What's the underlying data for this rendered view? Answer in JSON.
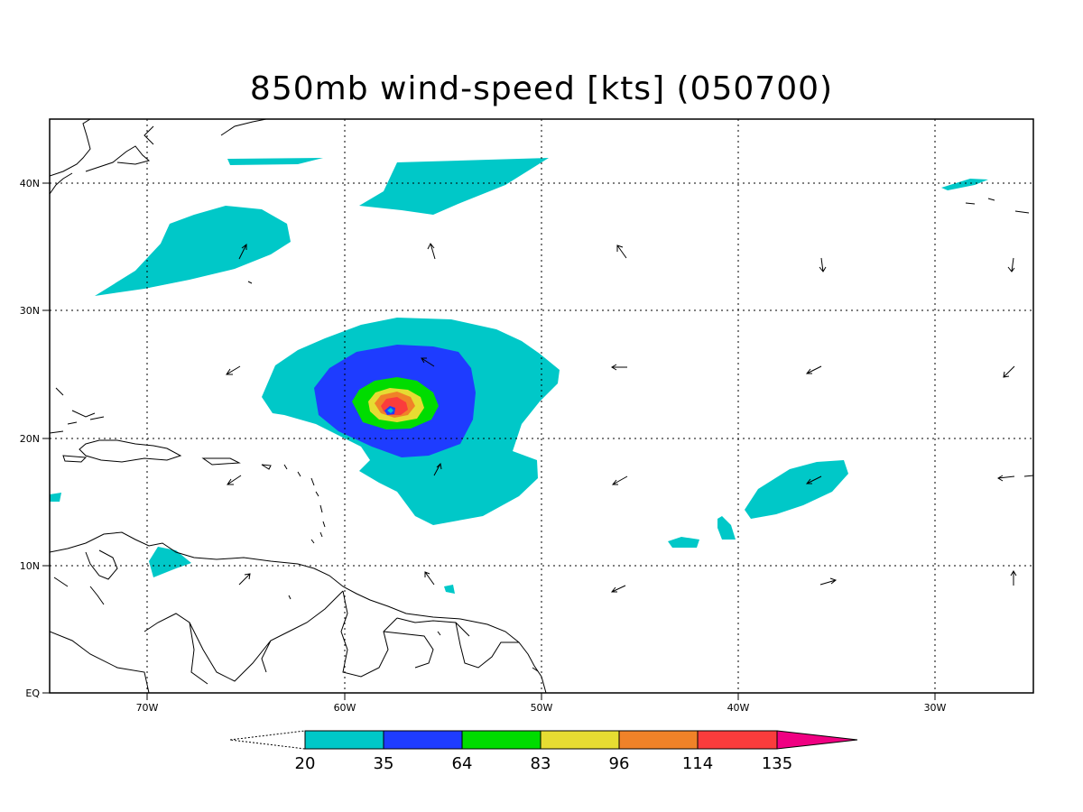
{
  "title": "850mb wind-speed [kts] (050700)",
  "axes": {
    "lon_labels": [
      "70W",
      "60W",
      "50W",
      "40W",
      "30W"
    ],
    "lat_labels": [
      "EQ",
      "10N",
      "20N",
      "30N",
      "40N"
    ],
    "lon_range": [
      -75,
      -25
    ],
    "lat_range": [
      0,
      45
    ],
    "grid": "dotted"
  },
  "colorbar": {
    "labels": [
      "20",
      "35",
      "64",
      "83",
      "96",
      "114",
      "135"
    ],
    "colors": [
      "#00c8c8",
      "#1e3cff",
      "#00dc00",
      "#e6dc32",
      "#f08228",
      "#fa3c3c",
      "#f00082"
    ],
    "units": "kts"
  },
  "contour_colors": {
    "c20": "#00c8c8",
    "c35": "#1e3cff",
    "c64": "#00dc00",
    "c83": "#e6dc32",
    "c96": "#f08228",
    "c114": "#fa3c3c"
  }
}
